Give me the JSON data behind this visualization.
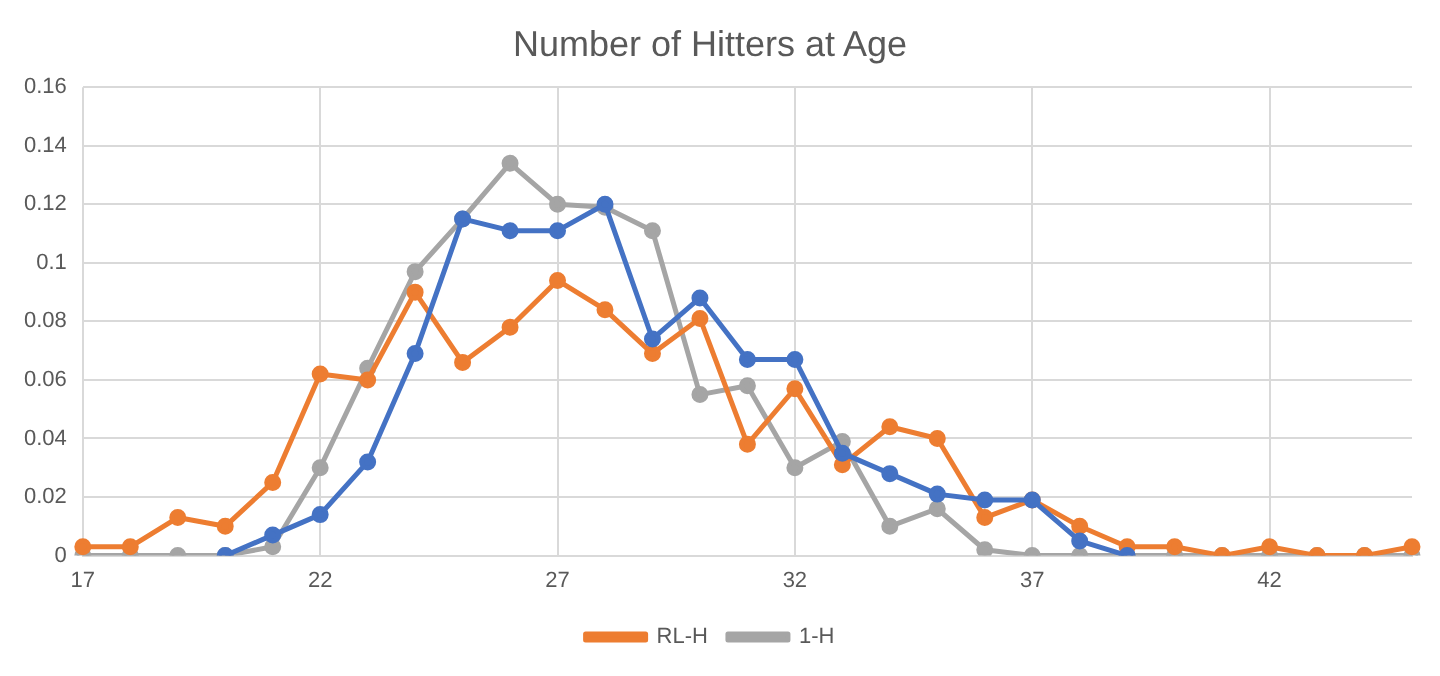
{
  "chart_data": {
    "type": "line",
    "title": "Number of Hitters at Age",
    "categories": [
      "17",
      null,
      null,
      null,
      null,
      "22",
      null,
      null,
      null,
      null,
      "27",
      null,
      null,
      null,
      null,
      "32",
      null,
      null,
      null,
      null,
      "37",
      null,
      null,
      null,
      null,
      "42",
      null,
      null,
      null
    ],
    "series": [
      {
        "color": "#4472c4",
        "values": [
          null,
          null,
          null,
          0,
          0.007,
          0.014,
          0.032,
          0.069,
          0.115,
          0.111,
          0.111,
          0.12,
          0.074,
          0.088,
          0.067,
          0.067,
          0.035,
          0.028,
          0.021,
          0.019,
          0.019,
          0.005,
          0,
          null,
          null,
          null,
          null,
          null,
          null
        ]
      },
      {
        "name": "RL-H",
        "color": "#ed7d31",
        "values": [
          0.003,
          0.003,
          0.013,
          0.01,
          0.025,
          0.062,
          0.06,
          0.09,
          0.066,
          0.078,
          0.094,
          0.084,
          0.069,
          0.081,
          0.038,
          0.057,
          0.031,
          0.044,
          0.04,
          0.013,
          0.019,
          0.01,
          0.003,
          0.003,
          0,
          0.003,
          0,
          0,
          0.003
        ]
      },
      {
        "name": "1-H",
        "color": "#a5a5a5",
        "values": [
          0,
          0,
          0,
          0,
          0.003,
          0.03,
          0.064,
          0.097,
          0.115,
          0.134,
          0.12,
          0.119,
          0.111,
          0.055,
          0.058,
          0.03,
          0.039,
          0.01,
          0.016,
          0.002,
          0,
          0,
          0,
          0,
          0,
          0,
          0,
          0,
          0
        ]
      }
    ],
    "ylim": [
      0,
      0.16
    ],
    "yticks": [
      0,
      0.02,
      0.04,
      0.06,
      0.08,
      0.1,
      0.12,
      0.14,
      0.16
    ],
    "grid": true,
    "legend": "bottom",
    "marker": "circle",
    "line_style": "solid"
  }
}
